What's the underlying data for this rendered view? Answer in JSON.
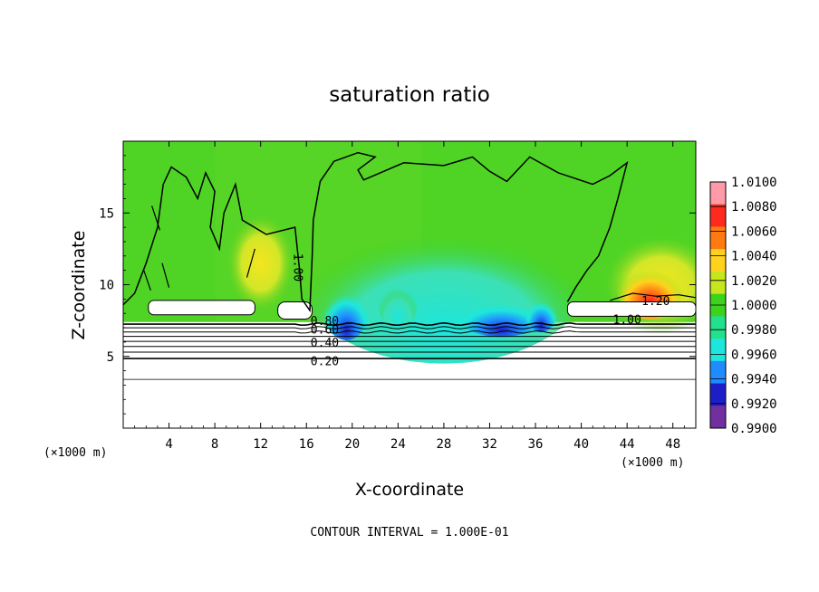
{
  "chart_data": {
    "type": "heatmap",
    "title": "saturation ratio",
    "xlabel": "X-coordinate",
    "ylabel": "Z-coordinate",
    "x_unit": "(×1000 m)",
    "z_unit": "(×1000 m)",
    "xlim": [
      0,
      50
    ],
    "ylim": [
      0,
      20
    ],
    "x_ticks": [
      4,
      8,
      12,
      16,
      20,
      24,
      28,
      32,
      36,
      40,
      44,
      48
    ],
    "y_ticks": [
      5,
      10,
      15
    ],
    "colorbar": {
      "levels": [
        "1.0100",
        "1.0080",
        "1.0060",
        "1.0040",
        "1.0020",
        "1.0000",
        "0.9980",
        "0.9960",
        "0.9940",
        "0.9920",
        "0.9900"
      ],
      "colors": [
        "#ff9aa8",
        "#ff2a1e",
        "#ff7a10",
        "#ffd21e",
        "#c8e61e",
        "#3cd21e",
        "#23e08c",
        "#1ee6dc",
        "#1e8cff",
        "#1e1ec8",
        "#7030a0"
      ]
    },
    "contour_labels": [
      {
        "text": "1.00",
        "x": 15.2,
        "z": 11.2
      },
      {
        "text": "1.20",
        "x": 46.5,
        "z": 8.8
      },
      {
        "text": "1.00",
        "x": 44.0,
        "z": 7.5
      },
      {
        "text": "0.80",
        "x": 17.6,
        "z": 7.4
      },
      {
        "text": "0.60",
        "x": 17.6,
        "z": 6.8
      },
      {
        "text": "0.40",
        "x": 17.6,
        "z": 5.9
      },
      {
        "text": "0.20",
        "x": 17.6,
        "z": 4.6
      }
    ],
    "contour_interval_text": "CONTOUR INTERVAL = 1.000E-01",
    "grid": false
  }
}
